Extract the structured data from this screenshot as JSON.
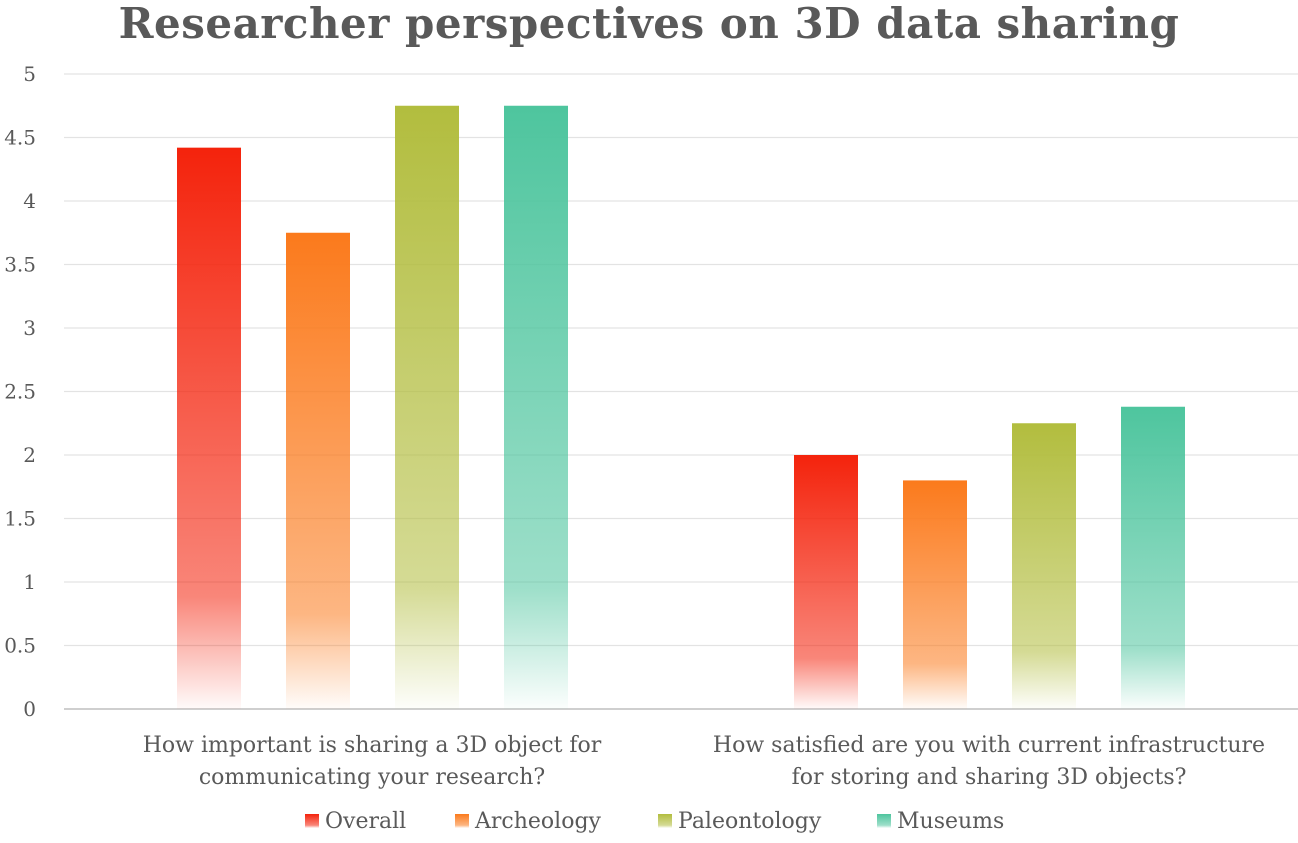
{
  "chart_data": {
    "type": "bar",
    "title": "Researcher perspectives on 3D data sharing",
    "xlabel": "",
    "ylabel": "",
    "ylim": [
      0,
      5
    ],
    "yticks": [
      0,
      0.5,
      1,
      1.5,
      2,
      2.5,
      3,
      3.5,
      4,
      4.5,
      5
    ],
    "ytick_labels": [
      "0",
      "0.5",
      "1",
      "1.5",
      "2",
      "2.5",
      "3",
      "3.5",
      "4",
      "4.5",
      "5"
    ],
    "grid": true,
    "legend_position": "bottom",
    "categories": [
      [
        "How important is sharing a 3D object for",
        "communicating your research?"
      ],
      [
        "How satisfied are you with current infrastructure",
        "for storing and sharing 3D objects?"
      ]
    ],
    "series": [
      {
        "name": "Overall",
        "color": "#f4230c",
        "values": [
          4.42,
          2.0
        ]
      },
      {
        "name": "Archeology",
        "color": "#fb7a1c",
        "values": [
          3.75,
          1.8
        ]
      },
      {
        "name": "Paleontology",
        "color": "#b2bd3e",
        "values": [
          4.75,
          2.25
        ]
      },
      {
        "name": "Museums",
        "color": "#4ec59e",
        "values": [
          4.75,
          2.38
        ]
      }
    ]
  }
}
